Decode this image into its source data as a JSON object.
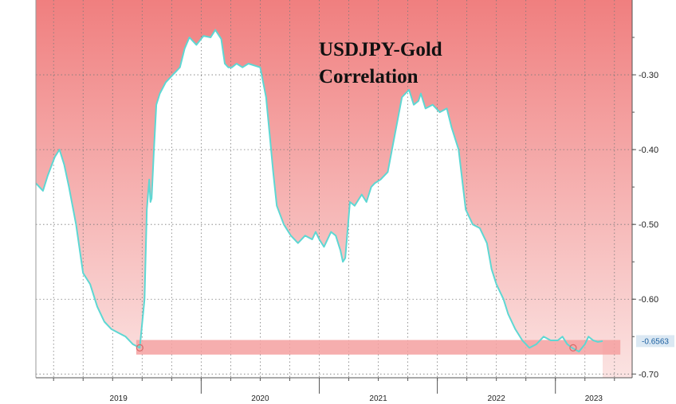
{
  "chart_data": {
    "type": "area",
    "title_lines": [
      "USDJPY-Gold",
      "Correlation"
    ],
    "xlabel": "",
    "ylabel": "",
    "x_ticks": [
      "2019",
      "2020",
      "2021",
      "2022",
      "2023"
    ],
    "y_ticks": [
      "-0.30",
      "-0.40",
      "-0.50",
      "-0.60",
      "-0.70"
    ],
    "y_tick_values": [
      -0.3,
      -0.4,
      -0.5,
      -0.6,
      -0.7
    ],
    "ylim": [
      -0.705,
      -0.2
    ],
    "xlim": [
      2018.6,
      2023.65
    ],
    "grid": true,
    "last_value_label": "-0.6563",
    "highlight_band": [
      -0.6545,
      -0.674
    ],
    "colors": {
      "fill_top": "#f07f7f",
      "fill_bottom": "#fbe3e2",
      "line": "#5ed7d3",
      "band": "#f4a0a0",
      "last_value_bg": "#dbe8f3"
    },
    "series": [
      {
        "x": [
          2018.6,
          2018.66,
          2018.7,
          2018.76,
          2018.8,
          2018.84,
          2018.88,
          2018.94,
          2019.0,
          2019.06,
          2019.12,
          2019.18,
          2019.24,
          2019.3,
          2019.36,
          2019.42,
          2019.48,
          2019.52,
          2019.54,
          2019.56,
          2019.57,
          2019.58,
          2019.6,
          2019.62,
          2019.65,
          2019.7,
          2019.76,
          2019.82,
          2019.86,
          2019.9,
          2019.96,
          2020.02,
          2020.08,
          2020.12,
          2020.17,
          2020.2,
          2020.23,
          2020.26,
          2020.3,
          2020.35,
          2020.4,
          2020.5,
          2020.55,
          2020.58,
          2020.61,
          2020.64,
          2020.7,
          2020.76,
          2020.82,
          2020.88,
          2020.94,
          2020.97,
          2021.0,
          2021.04,
          2021.1,
          2021.14,
          2021.18,
          2021.2,
          2021.22,
          2021.26,
          2021.3,
          2021.36,
          2021.4,
          2021.44,
          2021.47,
          2021.52,
          2021.58,
          2021.64,
          2021.7,
          2021.76,
          2021.8,
          2021.84,
          2021.86,
          2021.9,
          2021.96,
          2022.02,
          2022.08,
          2022.12,
          2022.18,
          2022.24,
          2022.3,
          2022.36,
          2022.42,
          2022.46,
          2022.5,
          2022.56,
          2022.6,
          2022.66,
          2022.72,
          2022.78,
          2022.84,
          2022.9,
          2022.96,
          2023.02,
          2023.06,
          2023.1,
          2023.14,
          2023.2,
          2023.25,
          2023.28,
          2023.32,
          2023.36,
          2023.4
        ],
        "values": [
          -0.445,
          -0.455,
          -0.435,
          -0.41,
          -0.4,
          -0.42,
          -0.45,
          -0.5,
          -0.565,
          -0.58,
          -0.61,
          -0.63,
          -0.64,
          -0.645,
          -0.65,
          -0.66,
          -0.665,
          -0.6,
          -0.48,
          -0.44,
          -0.47,
          -0.465,
          -0.4,
          -0.34,
          -0.325,
          -0.31,
          -0.3,
          -0.29,
          -0.265,
          -0.25,
          -0.26,
          -0.248,
          -0.25,
          -0.24,
          -0.252,
          -0.285,
          -0.29,
          -0.29,
          -0.285,
          -0.29,
          -0.285,
          -0.29,
          -0.33,
          -0.38,
          -0.43,
          -0.475,
          -0.5,
          -0.515,
          -0.525,
          -0.515,
          -0.52,
          -0.51,
          -0.52,
          -0.53,
          -0.51,
          -0.515,
          -0.535,
          -0.55,
          -0.545,
          -0.47,
          -0.475,
          -0.46,
          -0.47,
          -0.45,
          -0.445,
          -0.44,
          -0.43,
          -0.38,
          -0.33,
          -0.32,
          -0.34,
          -0.335,
          -0.325,
          -0.345,
          -0.34,
          -0.35,
          -0.345,
          -0.37,
          -0.4,
          -0.48,
          -0.5,
          -0.505,
          -0.525,
          -0.56,
          -0.58,
          -0.6,
          -0.62,
          -0.64,
          -0.655,
          -0.665,
          -0.66,
          -0.65,
          -0.655,
          -0.655,
          -0.65,
          -0.66,
          -0.665,
          -0.67,
          -0.66,
          -0.65,
          -0.655,
          -0.657,
          -0.656
        ]
      }
    ]
  }
}
